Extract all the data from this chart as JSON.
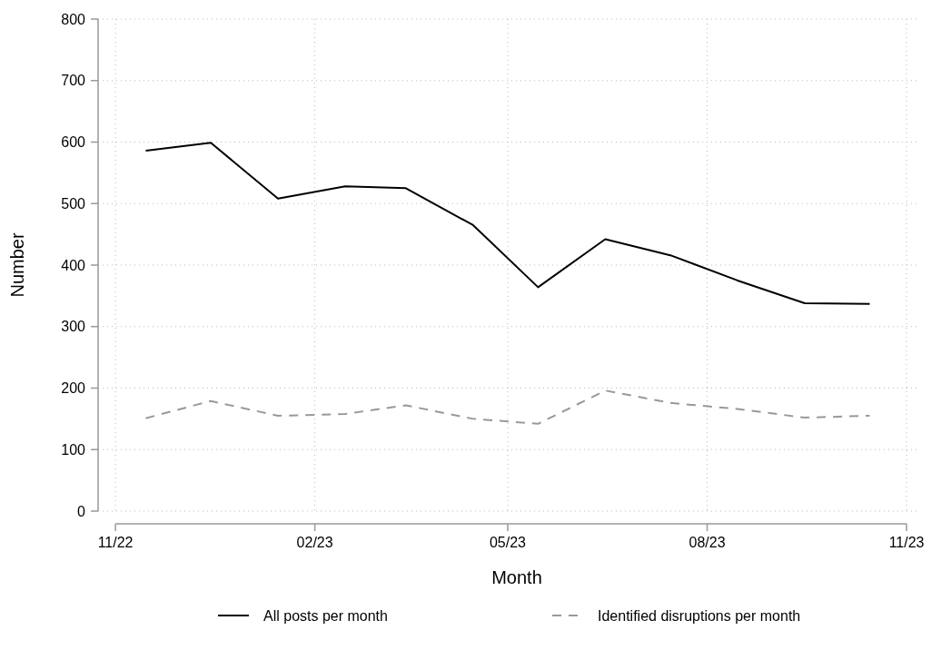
{
  "chart_data": {
    "type": "line",
    "xlabel": "Month",
    "ylabel": "Number",
    "x": [
      "2022-11-15",
      "2022-12-15",
      "2023-01-15",
      "2023-02-15",
      "2023-03-15",
      "2023-04-15",
      "2023-05-15",
      "2023-06-15",
      "2023-07-15",
      "2023-08-15",
      "2023-09-15",
      "2023-10-15"
    ],
    "series": [
      {
        "name": "All posts per month",
        "color": "#000000",
        "line_style": "solid",
        "values": [
          586,
          599,
          508,
          528,
          525,
          465,
          364,
          442,
          416,
          375,
          338,
          337
        ]
      },
      {
        "name": "Identified disruptions per month",
        "color": "#999999",
        "line_style": "dashed",
        "values": [
          151,
          179,
          155,
          158,
          172,
          150,
          142,
          196,
          176,
          166,
          152,
          155
        ]
      }
    ],
    "xlim": [
      "2022-10-24",
      "2023-11-06"
    ],
    "xticks": [
      {
        "value": "2022-11-01",
        "label": "11/22"
      },
      {
        "value": "2023-02-01",
        "label": "02/23"
      },
      {
        "value": "2023-05-01",
        "label": "05/23"
      },
      {
        "value": "2023-08-01",
        "label": "08/23"
      },
      {
        "value": "2023-11-01",
        "label": "11/23"
      }
    ],
    "ylim": [
      0,
      800
    ],
    "yticks": [
      0,
      100,
      200,
      300,
      400,
      500,
      600,
      700,
      800
    ],
    "grid": true,
    "legend": "bottom",
    "marker": "none"
  }
}
